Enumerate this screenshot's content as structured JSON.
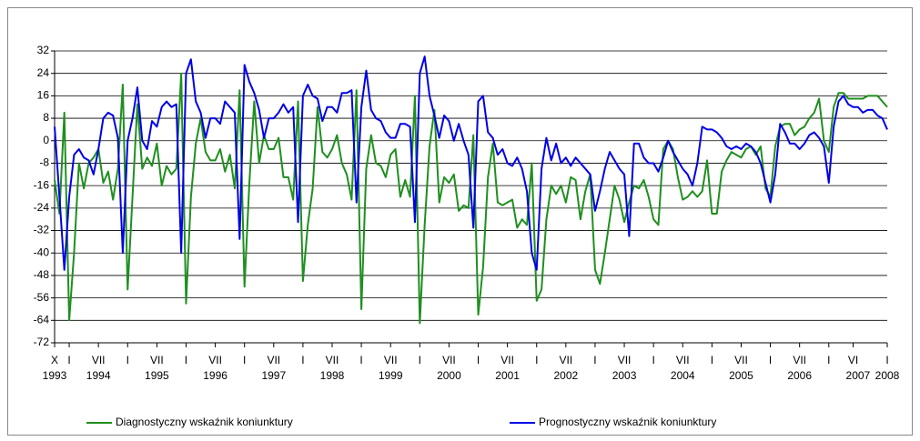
{
  "chart_data": {
    "type": "line",
    "categories": [
      "X",
      null,
      null,
      "I",
      null,
      null,
      null,
      null,
      null,
      "VII",
      null,
      null,
      null,
      null,
      null,
      "I",
      null,
      null,
      null,
      null,
      null,
      "VII",
      null,
      null,
      null,
      null,
      null,
      "I",
      null,
      null,
      null,
      null,
      null,
      "VII",
      null,
      null,
      null,
      null,
      null,
      "I",
      null,
      null,
      null,
      null,
      null,
      "VII",
      null,
      null,
      null,
      null,
      null,
      "I",
      null,
      null,
      null,
      null,
      null,
      "VII",
      null,
      null,
      null,
      null,
      null,
      "I",
      null,
      null,
      null,
      null,
      null,
      "VII",
      null,
      null,
      null,
      null,
      null,
      "I",
      null,
      null,
      null,
      null,
      null,
      "VII",
      null,
      null,
      null,
      null,
      null,
      "I",
      null,
      null,
      null,
      null,
      null,
      "VII",
      null,
      null,
      null,
      null,
      null,
      "I",
      null,
      null,
      null,
      null,
      null,
      "VII",
      null,
      null,
      null,
      null,
      null,
      "I",
      null,
      null,
      null,
      null,
      null,
      "VII",
      null,
      null,
      null,
      null,
      null,
      "I",
      null,
      null,
      null,
      null,
      null,
      "VII",
      null,
      null,
      null,
      null,
      null,
      "I",
      null,
      null,
      null,
      null,
      null,
      "VII",
      null,
      null,
      null,
      null,
      null,
      "I",
      null,
      null,
      null,
      null,
      null,
      "VII",
      null,
      null,
      null,
      null,
      null,
      "I",
      null,
      null,
      null,
      null,
      "VI",
      null,
      null,
      null,
      null,
      null,
      null,
      "I"
    ],
    "category_years": [
      "1993",
      null,
      null,
      null,
      null,
      null,
      null,
      null,
      null,
      "1994",
      null,
      null,
      null,
      null,
      null,
      null,
      null,
      null,
      null,
      null,
      null,
      "1995",
      null,
      null,
      null,
      null,
      null,
      null,
      null,
      null,
      null,
      null,
      null,
      "1996",
      null,
      null,
      null,
      null,
      null,
      null,
      null,
      null,
      null,
      null,
      null,
      "1997",
      null,
      null,
      null,
      null,
      null,
      null,
      null,
      null,
      null,
      null,
      null,
      "1998",
      null,
      null,
      null,
      null,
      null,
      null,
      null,
      null,
      null,
      null,
      null,
      "1999",
      null,
      null,
      null,
      null,
      null,
      null,
      null,
      null,
      null,
      null,
      null,
      "2000",
      null,
      null,
      null,
      null,
      null,
      null,
      null,
      null,
      null,
      null,
      null,
      "2001",
      null,
      null,
      null,
      null,
      null,
      null,
      null,
      null,
      null,
      null,
      null,
      "2002",
      null,
      null,
      null,
      null,
      null,
      null,
      null,
      null,
      null,
      null,
      null,
      "2003",
      null,
      null,
      null,
      null,
      null,
      null,
      null,
      null,
      null,
      null,
      null,
      "2004",
      null,
      null,
      null,
      null,
      null,
      null,
      null,
      null,
      null,
      null,
      null,
      "2005",
      null,
      null,
      null,
      null,
      null,
      null,
      null,
      null,
      null,
      null,
      null,
      "2006",
      null,
      null,
      null,
      null,
      null,
      null,
      null,
      null,
      null,
      null,
      null,
      "2007",
      null,
      null,
      null,
      null,
      null,
      "2008"
    ],
    "series": [
      {
        "name": "Diagnostyczny wskaźnik koniunktury",
        "color": "#1f8f1f",
        "values": [
          -14,
          -26,
          10,
          -64,
          -40,
          -8,
          -17,
          -8,
          -6,
          -3,
          -15,
          -11,
          -21,
          -10,
          20,
          -53,
          -20,
          13,
          -10,
          -6,
          -9,
          -1,
          -16,
          -9,
          -12,
          -10,
          24,
          -58,
          -20,
          -1,
          8,
          -4,
          -7,
          -7,
          -3,
          -11,
          -5,
          -17,
          18,
          -52,
          -15,
          14,
          -8,
          2,
          -3,
          -3,
          1,
          -13,
          -13,
          -21,
          14,
          -50,
          -30,
          -17,
          12,
          -4,
          -6,
          -3,
          2,
          -8,
          -12,
          -21,
          18,
          -60,
          -10,
          2,
          -8,
          -9,
          -13,
          -5,
          -3,
          -20,
          -14,
          -20,
          16,
          -65,
          -30,
          -2,
          11,
          -22,
          -13,
          -15,
          -12,
          -25,
          -23,
          -24,
          2,
          -62,
          -45,
          -13,
          -1,
          -22,
          -23,
          -22,
          -21,
          -31,
          -28,
          -30,
          -8,
          -57,
          -53,
          -28,
          -16,
          -19,
          -16,
          -22,
          -13,
          -14,
          -28,
          -18,
          -12,
          -46,
          -51,
          -40,
          -28,
          -16,
          -21,
          -29,
          -22,
          -16,
          -17,
          -14,
          -20,
          -28,
          -30,
          -3,
          0,
          -3,
          -13,
          -21,
          -20,
          -18,
          -20,
          -18,
          -7,
          -26,
          -26,
          -11,
          -7,
          -4,
          -5,
          -6,
          -3,
          -2,
          -5,
          -2,
          -17,
          -20,
          -2,
          5,
          6,
          6,
          2,
          4,
          5,
          8,
          10,
          15,
          0,
          -4,
          12,
          17,
          17,
          15,
          15,
          15,
          15,
          16,
          16,
          16,
          14,
          12
        ]
      },
      {
        "name": "Prognostyczny wskaźnik koniunktury",
        "color": "#0000e6",
        "values": [
          5,
          -20,
          -46,
          -20,
          -5,
          -3,
          -6,
          -7,
          -12,
          -3,
          8,
          10,
          9,
          1,
          -40,
          0,
          8,
          19,
          0,
          -3,
          7,
          5,
          12,
          14,
          12,
          13,
          -40,
          24,
          29,
          14,
          10,
          1,
          8,
          8,
          6,
          14,
          12,
          10,
          -35,
          27,
          21,
          17,
          11,
          1,
          8,
          8,
          10,
          13,
          10,
          12,
          -29,
          16,
          20,
          16,
          15,
          7,
          12,
          12,
          10,
          17,
          17,
          18,
          -22,
          12,
          25,
          11,
          8,
          7,
          3,
          1,
          1,
          6,
          6,
          5,
          -29,
          24,
          30,
          16,
          9,
          1,
          9,
          7,
          0,
          6,
          0,
          -5,
          -31,
          14,
          16,
          3,
          1,
          -5,
          -3,
          -8,
          -9,
          -6,
          -10,
          -18,
          -40,
          -46,
          -10,
          1,
          -7,
          -1,
          -8,
          -6,
          -9,
          -6,
          -8,
          -10,
          -12,
          -25,
          -18,
          -10,
          -4,
          -7,
          -10,
          -12,
          -34,
          -1,
          -1,
          -6,
          -8,
          -8,
          -11,
          -6,
          0,
          -4,
          -7,
          -10,
          -12,
          -16,
          -8,
          5,
          4,
          4,
          3,
          1,
          -2,
          -3,
          -2,
          -3,
          -1,
          -2,
          -4,
          -8,
          -15,
          -22,
          -12,
          6,
          3,
          -1,
          -1,
          -3,
          -1,
          2,
          3,
          1,
          -2,
          -15,
          5,
          14,
          16,
          13,
          12,
          12,
          10,
          11,
          11,
          9,
          8,
          4
        ]
      }
    ],
    "ylim": [
      -72,
      32
    ],
    "yticks": [
      -72,
      -64,
      -56,
      -48,
      -40,
      -32,
      -24,
      -16,
      -8,
      0,
      8,
      16,
      24,
      32
    ],
    "grid": true,
    "legend": "bottom"
  }
}
